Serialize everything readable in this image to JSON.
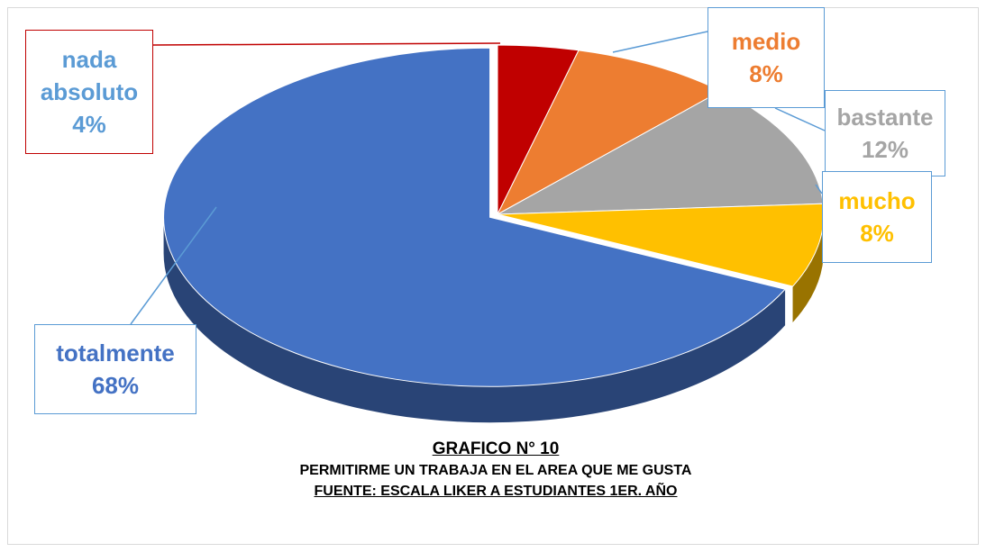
{
  "chart_data": {
    "type": "pie",
    "title": "GRAFICO N° 10",
    "subtitle": "PERMITIRME UN TRABAJA EN EL AREA QUE ME GUSTA",
    "source": "FUENTE: ESCALA LIKER A ESTUDIANTES 1ER. AÑO",
    "categories": [
      "nada absoluto",
      "medio",
      "bastante",
      "mucho",
      "totalmente"
    ],
    "values": [
      4,
      8,
      12,
      8,
      68
    ],
    "value_labels": [
      "4%",
      "8%",
      "12%",
      "8%",
      "68%"
    ],
    "colors": [
      "#c00000",
      "#ed7d31",
      "#a5a5a5",
      "#ffc000",
      "#4472c4"
    ]
  }
}
